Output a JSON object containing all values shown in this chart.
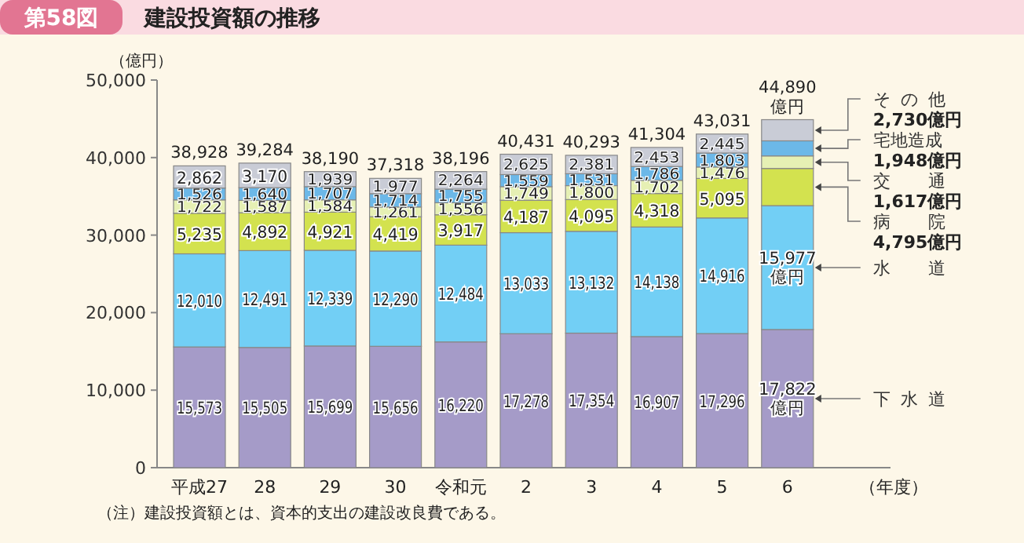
{
  "chart_data": {
    "type": "bar",
    "stacked": true,
    "title": "建設投資額の推移",
    "ylabel": "（億円）",
    "xlabel": "（年度）",
    "annotations": [
      "第58図",
      "（注）建設投資額とは、資本的支出の建設改良費である。"
    ],
    "categories": [
      "平成27",
      "28",
      "29",
      "30",
      "令和元",
      "2",
      "3",
      "4",
      "5",
      "6"
    ],
    "ylim": [
      0,
      50000
    ],
    "yticks": [
      0,
      {
        "value": 10000,
        "label": "10,000"
      },
      {
        "value": 20000,
        "label": "20,000"
      },
      {
        "value": 30000,
        "label": "30,000"
      },
      {
        "value": 40000,
        "label": "40,000"
      },
      {
        "value": 50000,
        "label": "50,000"
      }
    ],
    "grid": false,
    "series": [
      {
        "name": "下水道",
        "color": "#a59bc8",
        "values": [
          15573,
          15505,
          15699,
          15656,
          16220,
          17278,
          17354,
          16907,
          17296,
          17822
        ],
        "value_labels": [
          "15,573",
          "15,505",
          "15,699",
          "15,656",
          "16,220",
          "17,278",
          "17,354",
          "16,907",
          "17,296",
          "17,822\n億円"
        ]
      },
      {
        "name": "水道",
        "color": "#72cff5",
        "values": [
          12010,
          12491,
          12339,
          12290,
          12484,
          13033,
          13132,
          14138,
          14916,
          15977
        ],
        "value_labels": [
          "12,010",
          "12,491",
          "12,339",
          "12,290",
          "12,484",
          "13,033",
          "13,132",
          "14,138",
          "14,916",
          "15,977\n億円"
        ]
      },
      {
        "name": "病院",
        "color": "#d3e24f",
        "values": [
          5235,
          4892,
          4921,
          4419,
          3917,
          4187,
          4095,
          4318,
          5095,
          4795
        ],
        "value_labels": [
          "5,235",
          "4,892",
          "4,921",
          "4,419",
          "3,917",
          "4,187",
          "4,095",
          "4,318",
          "5,095",
          "4,795億円"
        ]
      },
      {
        "name": "交通",
        "color": "#e6f0b4",
        "values": [
          1722,
          1587,
          1584,
          1261,
          1556,
          1749,
          1800,
          1702,
          1476,
          1617
        ],
        "value_labels": [
          "1,722",
          "1,587",
          "1,584",
          "1,261",
          "1,556",
          "1,749",
          "1,800",
          "1,702",
          "1,476",
          "1,617億円"
        ]
      },
      {
        "name": "宅地造成",
        "color": "#6cb8e8",
        "values": [
          1526,
          1640,
          1707,
          1714,
          1755,
          1559,
          1531,
          1786,
          1803,
          1948
        ],
        "value_labels": [
          "1,526",
          "1,640",
          "1,707",
          "1,714",
          "1,755",
          "1,559",
          "1,531",
          "1,786",
          "1,803",
          "1,948億円"
        ]
      },
      {
        "name": "その他",
        "color": "#c9ccd6",
        "values": [
          2862,
          3170,
          1939,
          1977,
          2264,
          2625,
          2381,
          2453,
          2445,
          2730
        ],
        "value_labels": [
          "2,862",
          "3,170",
          "1,939",
          "1,977",
          "2,264",
          "2,625",
          "2,381",
          "2,453",
          "2,445",
          "2,730億円"
        ]
      }
    ],
    "totals": [
      "38,928",
      "39,284",
      "38,190",
      "37,318",
      "38,196",
      "40,431",
      "40,293",
      "41,304",
      "43,031",
      "44,890\n億円"
    ]
  }
}
